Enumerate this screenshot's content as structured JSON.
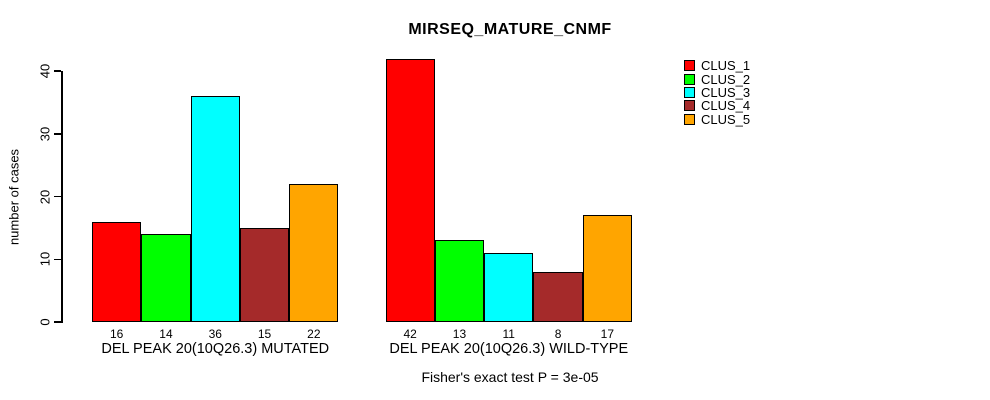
{
  "title": "MIRSEQ_MATURE_CNMF",
  "ylabel": "number of cases",
  "footer": "Fisher's exact test P = 3e-05",
  "chart_data": {
    "type": "bar",
    "title": "MIRSEQ_MATURE_CNMF",
    "ylabel": "number of cases",
    "xlabel": "",
    "ylim": [
      0,
      40
    ],
    "yticks": [
      0,
      10,
      20,
      30,
      40
    ],
    "grid": false,
    "legend_position": "right",
    "annotation": "Fisher's exact test P = 3e-05",
    "series": [
      {
        "name": "CLUS_1",
        "color": "#FF0000"
      },
      {
        "name": "CLUS_2",
        "color": "#00FF00"
      },
      {
        "name": "CLUS_3",
        "color": "#00FFFF"
      },
      {
        "name": "CLUS_4",
        "color": "#A52A2A"
      },
      {
        "name": "CLUS_5",
        "color": "#FFA500"
      }
    ],
    "groups": [
      {
        "label": "DEL PEAK 20(10Q26.3) MUTATED",
        "values": [
          16,
          14,
          36,
          15,
          22
        ]
      },
      {
        "label": "DEL PEAK 20(10Q26.3) WILD-TYPE",
        "values": [
          42,
          13,
          11,
          8,
          17
        ]
      }
    ]
  }
}
